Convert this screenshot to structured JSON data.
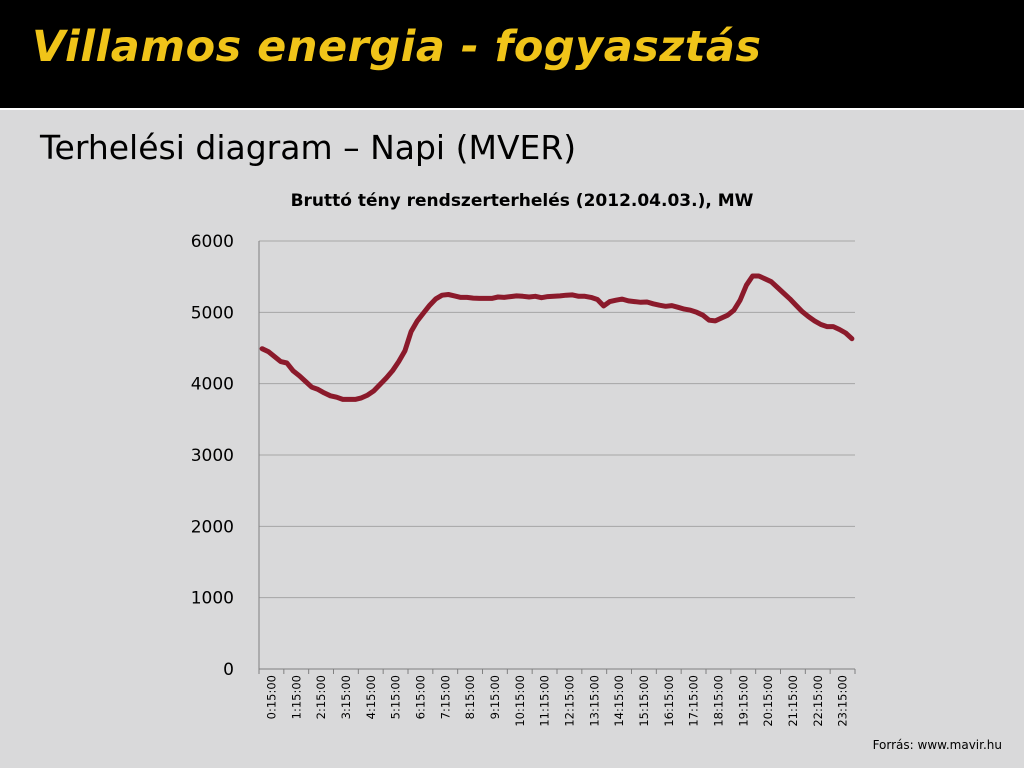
{
  "slide": {
    "title": "Villamos energia - fogyasztás",
    "subtitle": "Terhelési diagram – Napi (MVER)",
    "source": "Forrás: www.mavir.hu"
  },
  "colors": {
    "title_bar": "#000000",
    "title_text": "#f0c419",
    "background": "#d9d9da",
    "series_line": "#8b1a2b",
    "gridline": "#a6a6a6"
  },
  "chart_data": {
    "type": "line",
    "title": "Bruttó tény rendszerterhelés (2012.04.03.), MW",
    "xlabel": "",
    "ylabel": "",
    "ylim": [
      0,
      6000
    ],
    "yticks": [
      0,
      1000,
      2000,
      3000,
      4000,
      5000,
      6000
    ],
    "grid": true,
    "legend": "none",
    "x_tick_labels": [
      "0:15:00",
      "1:15:00",
      "2:15:00",
      "3:15:00",
      "4:15:00",
      "5:15:00",
      "6:15:00",
      "7:15:00",
      "8:15:00",
      "9:15:00",
      "10:15:00",
      "11:15:00",
      "12:15:00",
      "13:15:00",
      "14:15:00",
      "15:15:00",
      "16:15:00",
      "17:15:00",
      "18:15:00",
      "19:15:00",
      "20:15:00",
      "21:15:00",
      "22:15:00",
      "23:15:00"
    ],
    "x_interval_minutes": 15,
    "x_start": "0:15:00",
    "series": [
      {
        "values": [
          4490,
          4450,
          4380,
          4310,
          4290,
          4180,
          4110,
          4030,
          3950,
          3920,
          3870,
          3830,
          3810,
          3780,
          3780,
          3780,
          3800,
          3840,
          3900,
          3990,
          4080,
          4180,
          4310,
          4460,
          4730,
          4880,
          4990,
          5100,
          5190,
          5240,
          5250,
          5230,
          5210,
          5210,
          5200,
          5195,
          5195,
          5195,
          5215,
          5210,
          5220,
          5230,
          5225,
          5215,
          5225,
          5205,
          5220,
          5225,
          5230,
          5240,
          5245,
          5225,
          5225,
          5210,
          5180,
          5090,
          5150,
          5170,
          5185,
          5160,
          5150,
          5140,
          5145,
          5120,
          5100,
          5085,
          5095,
          5070,
          5045,
          5030,
          5000,
          4960,
          4890,
          4880,
          4920,
          4960,
          5030,
          5170,
          5380,
          5510,
          5510,
          5470,
          5430,
          5350,
          5270,
          5190,
          5100,
          5010,
          4940,
          4880,
          4830,
          4800,
          4800,
          4760,
          4710,
          4630
        ]
      }
    ]
  }
}
